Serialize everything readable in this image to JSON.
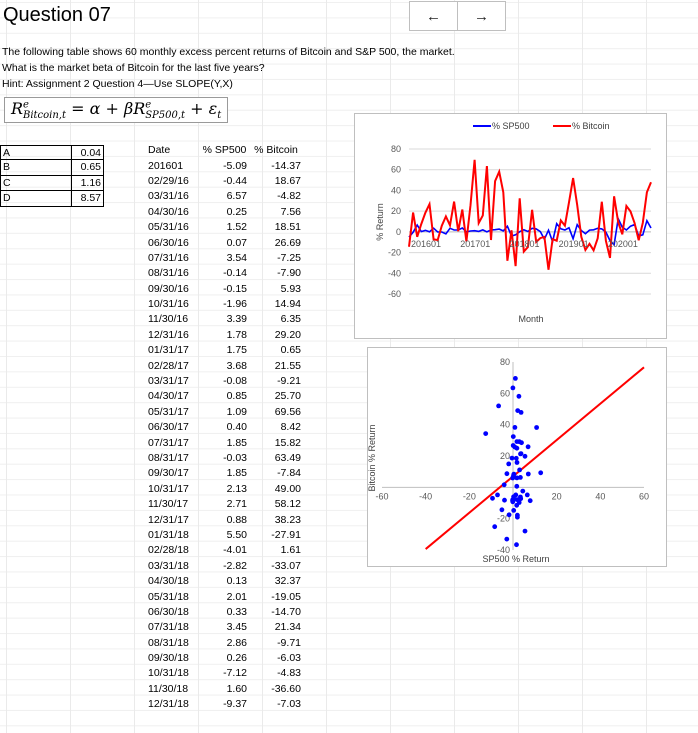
{
  "title": "Question 07",
  "nav": {
    "back_icon": "←",
    "forward_icon": "→"
  },
  "question": {
    "line1": "The following table shows 60 monthly excess percent returns of Bitcoin and S&P 500, the market.",
    "line2": "What is the market beta of Bitcoin for the last five years?",
    "line3": "Hint: Assignment 2 Question 4—Use SLOPE(Y,X)"
  },
  "formula": {
    "lhs": "R",
    "lhs_sup": "e",
    "lhs_sub": "Bitcoin,t",
    "mid": " = α + βR",
    "mid_sup": "e",
    "mid_sub": "SP500,t",
    "rhs": " + ε",
    "rhs_sub": "t"
  },
  "options": [
    {
      "letter": "A",
      "value": "0.04"
    },
    {
      "letter": "B",
      "value": "0.65"
    },
    {
      "letter": "C",
      "value": "1.16"
    },
    {
      "letter": "D",
      "value": "8.57"
    }
  ],
  "table": {
    "headers": [
      "Date",
      "% SP500",
      "% Bitcoin"
    ],
    "rows": [
      [
        "201601",
        "-5.09",
        "-14.37"
      ],
      [
        "02/29/16",
        "-0.44",
        "18.67"
      ],
      [
        "03/31/16",
        "6.57",
        "-4.82"
      ],
      [
        "04/30/16",
        "0.25",
        "7.56"
      ],
      [
        "05/31/16",
        "1.52",
        "18.51"
      ],
      [
        "06/30/16",
        "0.07",
        "26.69"
      ],
      [
        "07/31/16",
        "3.54",
        "-7.25"
      ],
      [
        "08/31/16",
        "-0.14",
        "-7.90"
      ],
      [
        "09/30/16",
        "-0.15",
        "5.93"
      ],
      [
        "10/31/16",
        "-1.96",
        "14.94"
      ],
      [
        "11/30/16",
        "3.39",
        "6.35"
      ],
      [
        "12/31/16",
        "1.78",
        "29.20"
      ],
      [
        "01/31/17",
        "1.75",
        "0.65"
      ],
      [
        "02/28/17",
        "3.68",
        "21.55"
      ],
      [
        "03/31/17",
        "-0.08",
        "-9.21"
      ],
      [
        "04/30/17",
        "0.85",
        "25.70"
      ],
      [
        "05/31/17",
        "1.09",
        "69.56"
      ],
      [
        "06/30/17",
        "0.40",
        "8.42"
      ],
      [
        "07/31/17",
        "1.85",
        "15.82"
      ],
      [
        "08/31/17",
        "-0.03",
        "63.49"
      ],
      [
        "09/30/17",
        "1.85",
        "-7.84"
      ],
      [
        "10/31/17",
        "2.13",
        "49.00"
      ],
      [
        "11/30/17",
        "2.71",
        "58.12"
      ],
      [
        "12/31/17",
        "0.88",
        "38.23"
      ],
      [
        "01/31/18",
        "5.50",
        "-27.91"
      ],
      [
        "02/28/18",
        "-4.01",
        "1.61"
      ],
      [
        "03/31/18",
        "-2.82",
        "-33.07"
      ],
      [
        "04/30/18",
        "0.13",
        "32.37"
      ],
      [
        "05/31/18",
        "2.01",
        "-19.05"
      ],
      [
        "06/30/18",
        "0.33",
        "-14.70"
      ],
      [
        "07/31/18",
        "3.45",
        "21.34"
      ],
      [
        "08/31/18",
        "2.86",
        "-9.71"
      ],
      [
        "09/30/18",
        "0.26",
        "-6.03"
      ],
      [
        "10/31/18",
        "-7.12",
        "-4.83"
      ],
      [
        "11/30/18",
        "1.60",
        "-36.60"
      ],
      [
        "12/31/18",
        "-9.37",
        "-7.03"
      ]
    ]
  },
  "line_chart": {
    "legend": [
      "% SP500",
      "% Bitcoin"
    ],
    "colors": [
      "#0000ff",
      "#ff0000"
    ],
    "ylabel": "% Return",
    "xlabel": "Month",
    "y_ticks": [
      "80",
      "60",
      "40",
      "20",
      "0",
      "-20",
      "-40",
      "-60"
    ],
    "x_ticks": [
      "201601",
      "201701",
      "201801",
      "201901",
      "202001"
    ]
  },
  "scatter_chart": {
    "ylabel": "Bitcoin % Return",
    "xlabel": "SP500 % Return",
    "x_ticks": [
      "-60",
      "-40",
      "-20",
      "20",
      "40",
      "60"
    ],
    "y_ticks": [
      "80",
      "60",
      "40",
      "20",
      "-20",
      "-40"
    ],
    "point_color": "#0000ff",
    "line_color": "#ff0000"
  },
  "chart_data": [
    {
      "type": "line",
      "xlabel": "Month",
      "ylabel": "% Return",
      "ylim": [
        -60,
        80
      ],
      "legend": "top",
      "series": [
        {
          "name": "% SP500",
          "color": "#0000ff",
          "values": [
            -5.09,
            -0.44,
            6.57,
            0.25,
            1.52,
            0.07,
            3.54,
            -0.14,
            -0.15,
            -1.96,
            3.39,
            1.78,
            1.75,
            3.68,
            -0.08,
            0.85,
            1.09,
            0.4,
            1.85,
            -0.03,
            1.85,
            2.13,
            2.71,
            0.88,
            5.5,
            -4.01,
            -2.82,
            0.13,
            2.01,
            0.33,
            3.45,
            2.86,
            0.26,
            -7.12,
            1.6,
            -9.37,
            7.9,
            3.0,
            1.8,
            3.9,
            -6.6,
            6.9,
            1.3,
            -1.8,
            1.7,
            2.0,
            3.4,
            2.9,
            -0.2,
            -8.4,
            -12.5,
            12.7,
            4.5,
            1.8,
            5.5,
            7.0,
            -3.9,
            -2.8,
            10.8,
            3.7
          ]
        },
        {
          "name": "% Bitcoin",
          "color": "#ff0000",
          "values": [
            -14.37,
            18.67,
            -4.82,
            7.56,
            18.51,
            26.69,
            -7.25,
            -7.9,
            5.93,
            14.94,
            6.35,
            29.2,
            0.65,
            21.55,
            -9.21,
            25.7,
            69.56,
            8.42,
            15.82,
            63.49,
            -7.84,
            49.0,
            58.12,
            38.23,
            -27.91,
            1.61,
            -33.07,
            32.37,
            -19.05,
            -14.7,
            21.34,
            -9.71,
            -6.03,
            -4.83,
            -36.6,
            -7.03,
            -8.5,
            11.1,
            6.0,
            28.5,
            52.0,
            25.9,
            -4.8,
            -17.5,
            -11.5,
            -17.8,
            -6.2,
            29.1,
            -8.6,
            -25.1,
            34.3,
            9.3,
            -2.4,
            25.0,
            19.8,
            8.5,
            -8.2,
            8.7,
            38.2,
            47.8
          ]
        }
      ]
    },
    {
      "type": "scatter",
      "xlabel": "SP500 % Return",
      "ylabel": "Bitcoin % Return",
      "xlim": [
        -60,
        60
      ],
      "ylim": [
        -40,
        80
      ],
      "x": [
        -5.09,
        -0.44,
        6.57,
        0.25,
        1.52,
        0.07,
        3.54,
        -0.14,
        -0.15,
        -1.96,
        3.39,
        1.78,
        1.75,
        3.68,
        -0.08,
        0.85,
        1.09,
        0.4,
        1.85,
        -0.03,
        1.85,
        2.13,
        2.71,
        0.88,
        5.5,
        -4.01,
        -2.82,
        0.13,
        2.01,
        0.33,
        3.45,
        2.86,
        0.26,
        -7.12,
        1.6,
        -9.37,
        7.9,
        3.0,
        1.8,
        3.9,
        -6.6,
        6.9,
        1.3,
        -1.8,
        1.7,
        2.0,
        3.4,
        2.9,
        -0.2,
        -8.4,
        -12.5,
        12.7,
        4.5,
        1.8,
        5.5,
        7.0,
        -3.9,
        -2.8,
        10.8,
        3.7
      ],
      "y": [
        -14.37,
        18.67,
        -4.82,
        7.56,
        18.51,
        26.69,
        -7.25,
        -7.9,
        5.93,
        14.94,
        6.35,
        29.2,
        0.65,
        21.55,
        -9.21,
        25.7,
        69.56,
        8.42,
        15.82,
        63.49,
        -7.84,
        49.0,
        58.12,
        38.23,
        -27.91,
        1.61,
        -33.07,
        32.37,
        -19.05,
        -14.7,
        21.34,
        -9.71,
        -6.03,
        -4.83,
        -36.6,
        -7.03,
        -8.5,
        11.1,
        6.0,
        28.5,
        52.0,
        25.9,
        -4.8,
        -17.5,
        -11.5,
        -17.8,
        -6.2,
        29.1,
        -8.6,
        -25.1,
        34.3,
        9.3,
        -2.4,
        25.0,
        19.8,
        8.5,
        -8.2,
        8.7,
        38.2,
        47.8
      ],
      "fit_line": {
        "slope": 1.16,
        "intercept": 7.0
      }
    }
  ]
}
